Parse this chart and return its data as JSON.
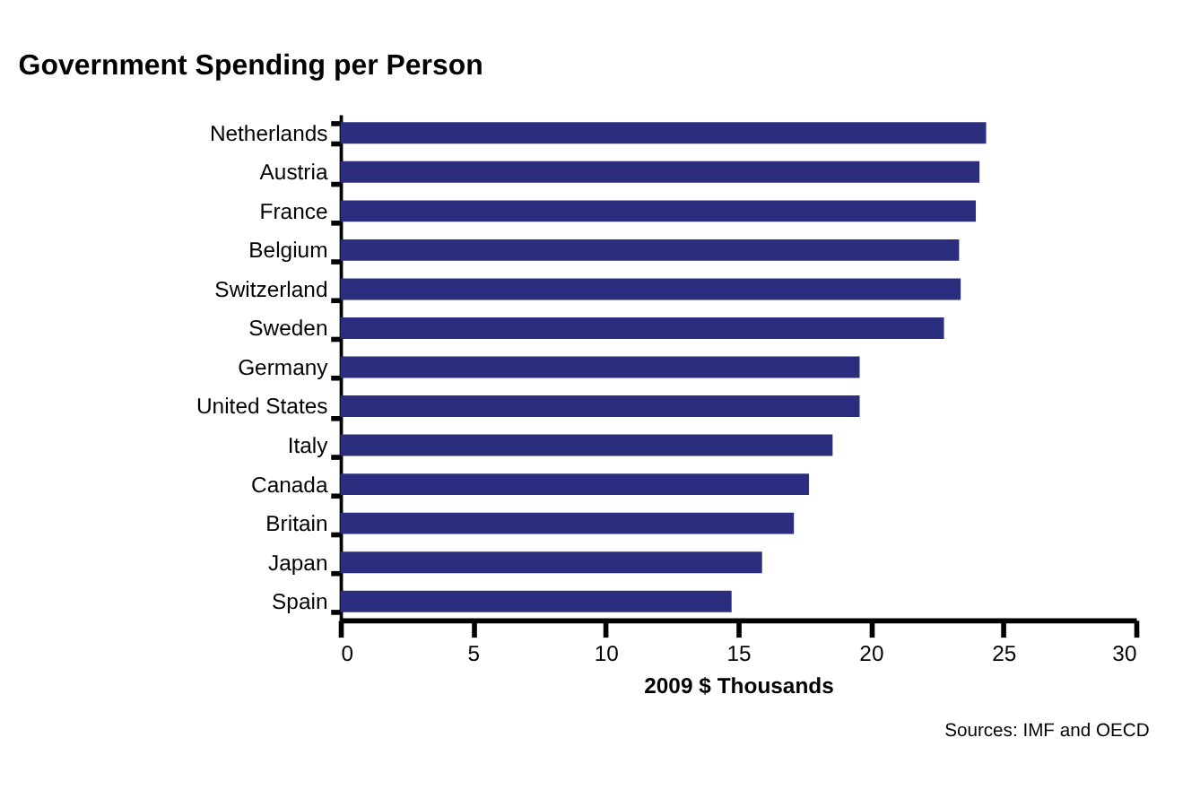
{
  "chart_data": {
    "type": "bar",
    "orientation": "horizontal",
    "title": "Government Spending per Person",
    "xlabel": "2009 $ Thousands",
    "categories": [
      "Netherlands",
      "Austria",
      "France",
      "Belgium",
      "Switzerland",
      "Sweden",
      "Germany",
      "United States",
      "Italy",
      "Canada",
      "Britain",
      "Japan",
      "Spain"
    ],
    "values": [
      24.35,
      24.1,
      23.96,
      23.33,
      23.39,
      22.76,
      19.58,
      19.58,
      18.56,
      17.67,
      17.1,
      15.9,
      14.75
    ],
    "color": "#2b2e7e",
    "xlim": [
      0,
      30
    ],
    "xticks": [
      0,
      5,
      10,
      15,
      20,
      25,
      30
    ],
    "grid": false,
    "annotations": [
      "Sources: IMF and OECD"
    ]
  }
}
